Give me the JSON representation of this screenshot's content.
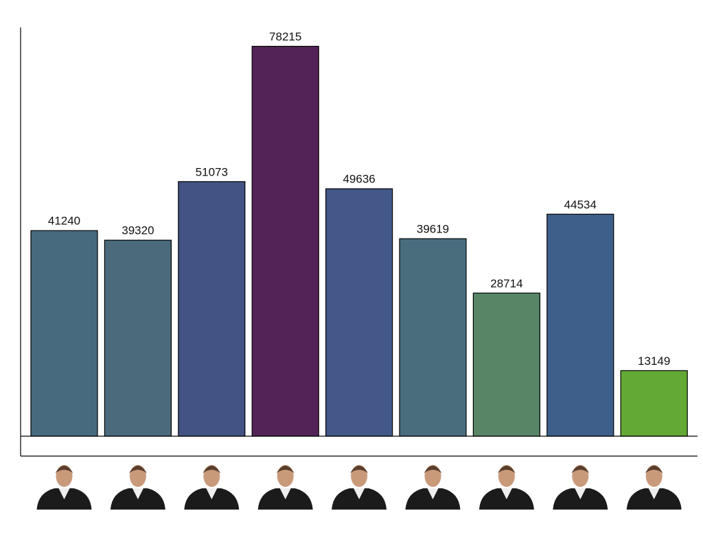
{
  "chart_data": {
    "type": "bar",
    "categories": [
      null,
      null,
      null,
      null,
      null,
      null,
      null,
      null,
      null
    ],
    "values": [
      41240,
      39320,
      51073,
      78215,
      49636,
      39619,
      28714,
      44534,
      13149
    ],
    "colors": [
      "#476a7f",
      "#4b6b7c",
      "#435484",
      "#532357",
      "#435889",
      "#4a6d7e",
      "#588565",
      "#3e5f8a",
      "#62a935"
    ],
    "ylim": [
      0,
      82000
    ]
  }
}
